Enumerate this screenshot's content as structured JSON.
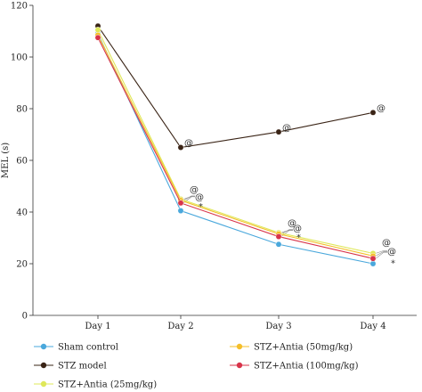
{
  "chart_data": {
    "type": "line",
    "title": "",
    "xlabel": "",
    "ylabel": "MEL (s)",
    "categories": [
      "Day 1",
      "Day 2",
      "Day 3",
      "Day 4"
    ],
    "ylim": [
      0,
      120
    ],
    "yticks": [
      0,
      20,
      40,
      60,
      80,
      100,
      120
    ],
    "ytick_labels": [
      "0",
      "20",
      "40",
      "60",
      "80",
      "100",
      "120"
    ],
    "grid": false,
    "legend_position": "bottom",
    "series": [
      {
        "name": "Sham control",
        "color": "#4aa8dc",
        "values": [
          109,
          40.5,
          27.5,
          20
        ]
      },
      {
        "name": "STZ model",
        "color": "#3a2416",
        "values": [
          112,
          65,
          71,
          78.5
        ]
      },
      {
        "name": "STZ+Antia (25mg/kg)",
        "color": "#dfe85a",
        "values": [
          110.5,
          45,
          32,
          24
        ]
      },
      {
        "name": "STZ+Antia (50mg/kg)",
        "color": "#f5bf2a",
        "values": [
          108.5,
          44.5,
          31.5,
          23
        ]
      },
      {
        "name": "STZ+Antia (100mg/kg)",
        "color": "#d8344a",
        "values": [
          107.5,
          43.5,
          30.5,
          22
        ]
      }
    ],
    "annotations": [
      {
        "text": "@",
        "category": "Day 2",
        "y": 67
      },
      {
        "text": "@",
        "category": "Day 3",
        "y": 73
      },
      {
        "text": "@",
        "category": "Day 4",
        "y": 80.5
      },
      {
        "text": "@",
        "category": "Day 2",
        "y": 49
      },
      {
        "text": "@",
        "category": "Day 2",
        "y": 46
      },
      {
        "text": "*",
        "category": "Day 2",
        "y": 42.5
      },
      {
        "text": "@",
        "category": "Day 3",
        "y": 36
      },
      {
        "text": "@",
        "category": "Day 3",
        "y": 34
      },
      {
        "text": "*",
        "category": "Day 3",
        "y": 30.5
      },
      {
        "text": "@",
        "category": "Day 4",
        "y": 28.5
      },
      {
        "text": "@",
        "category": "Day 4",
        "y": 25
      },
      {
        "text": "*",
        "category": "Day 4",
        "y": 20.5
      }
    ]
  }
}
